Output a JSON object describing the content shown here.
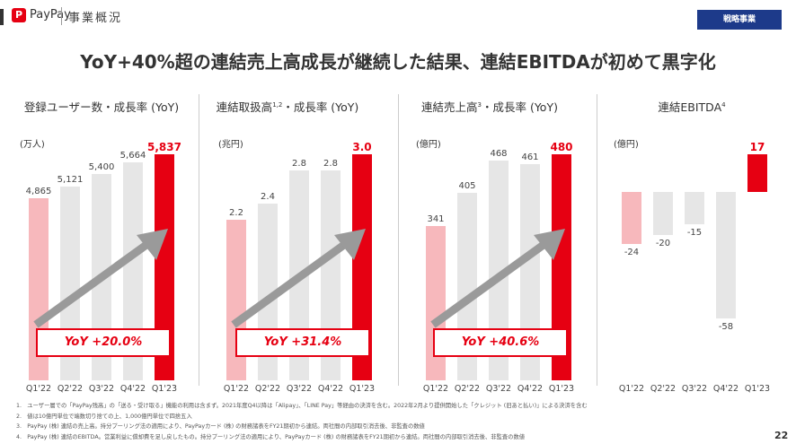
{
  "header": {
    "logo_glyph": "P",
    "brand": "PayPay",
    "section": "事業概況",
    "tag": "戦略事業"
  },
  "headline": "YoY+40%超の連結売上高成長が継続した結果、連結EBITDAが初めて黒字化",
  "colors": {
    "highlight": "#e60012",
    "past_q1": "#f7b8bc",
    "other": "#e6e6e6",
    "arrow": "#9a9a9a",
    "tag": "#1d3a8a"
  },
  "chart_data": [
    {
      "type": "bar",
      "title": "登録ユーザー数・成長率 (YoY)",
      "title_sup": "",
      "unit": "(万人)",
      "categories": [
        "Q1'22",
        "Q2'22",
        "Q3'22",
        "Q4'22",
        "Q1'23"
      ],
      "values": [
        4865,
        5121,
        5400,
        5664,
        5837
      ],
      "value_labels": [
        "4,865",
        "5,121",
        "5,400",
        "5,664",
        "5,837"
      ],
      "ylim": [
        837,
        5837
      ],
      "yoy": "YoY +20.0%"
    },
    {
      "type": "bar",
      "title": "連結取扱高",
      "title_sup": "1,2",
      "title_suffix": "・成長率 (YoY)",
      "unit": "(兆円)",
      "categories": [
        "Q1'22",
        "Q2'22",
        "Q3'22",
        "Q4'22",
        "Q1'23"
      ],
      "values": [
        2.2,
        2.4,
        2.8,
        2.8,
        3.0
      ],
      "value_labels": [
        "2.2",
        "2.4",
        "2.8",
        "2.8",
        "3.0"
      ],
      "ylim": [
        0.24,
        3.0
      ],
      "yoy": "YoY +31.4%"
    },
    {
      "type": "bar",
      "title": "連結売上高",
      "title_sup": "3",
      "title_suffix": "・成長率 (YoY)",
      "unit": "(億円)",
      "categories": [
        "Q1'22",
        "Q2'22",
        "Q3'22",
        "Q4'22",
        "Q1'23"
      ],
      "values": [
        341,
        405,
        468,
        461,
        480
      ],
      "value_labels": [
        "341",
        "405",
        "468",
        "461",
        "480"
      ],
      "ylim": [
        43,
        480
      ],
      "yoy": "YoY +40.6%"
    },
    {
      "type": "bar",
      "title": "連結EBITDA",
      "title_sup": "4",
      "title_suffix": "",
      "unit": "(億円)",
      "categories": [
        "Q1'22",
        "Q2'22",
        "Q3'22",
        "Q4'22",
        "Q1'23"
      ],
      "values": [
        -24,
        -20,
        -15,
        -58,
        17
      ],
      "value_labels": [
        "-24",
        "-20",
        "-15",
        "-58",
        "17"
      ],
      "ylim": [
        -80,
        17
      ]
    }
  ],
  "footnotes": [
    "1.　ユーザー層での「PayPay残高」の「送る・受け取る」機能の利用は含まず。2021年度Q4以降は「Alipay」、「LINE Pay」等経由の決済を含む。2022年2月より提供開始した「クレジット (旧あと払い)」による決済を含む",
    "2.　値は10億円単位で端数切り捨ての上、1,000億円単位で四捨五入",
    "3.　PayPay (株) 連結の売上高。持分プーリング法の適用により、PayPayカード (株) の財務諸表をFY21期初から連結。両社間の内部取引消去後、非監査の数値",
    "4.　PayPay (株) 連結のEBITDA。営業利益に償却費を足し戻したもの。持分プーリング法の適用により、PayPayカード (株) の財務諸表をFY21期初から連結。両社間の内部取引消去後、非監査の数値"
  ],
  "page_number": "22"
}
